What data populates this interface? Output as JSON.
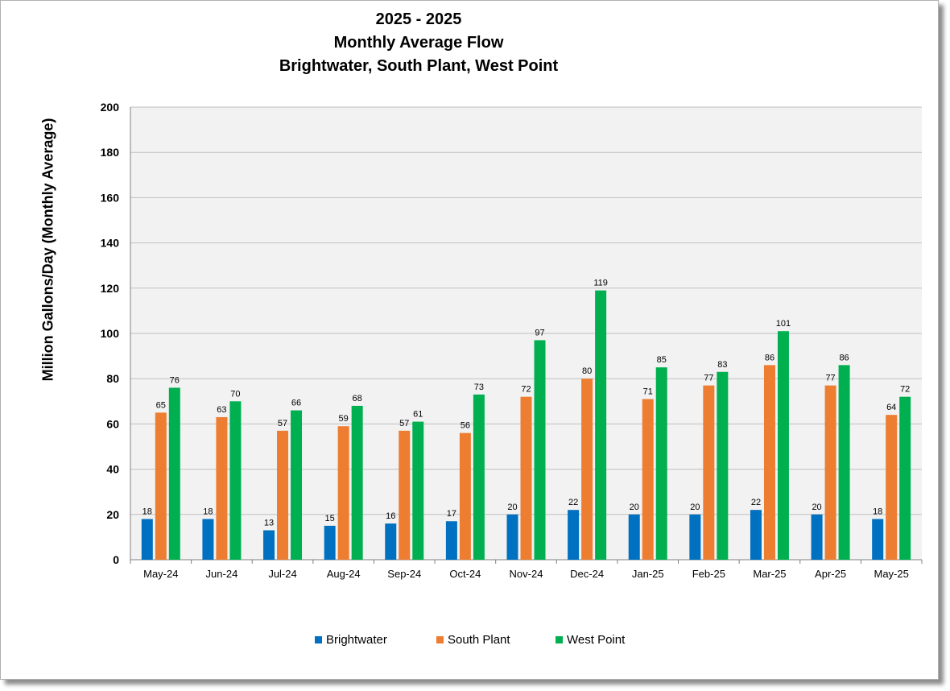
{
  "chart_data": {
    "type": "bar",
    "title_lines": [
      "2025 - 2025",
      "Monthly Average Flow",
      "Brightwater, South Plant, West Point"
    ],
    "ylabel": "Million Gallons/Day (Monthly Average)",
    "xlabel": "",
    "ylim": [
      0,
      200
    ],
    "yticks": [
      "0",
      "20",
      "40",
      "60",
      "80",
      "100",
      "120",
      "140",
      "160",
      "180",
      "200"
    ],
    "grid": true,
    "legend_position": "bottom",
    "categories": [
      "May-24",
      "Jun-24",
      "Jul-24",
      "Aug-24",
      "Sep-24",
      "Oct-24",
      "Nov-24",
      "Dec-24",
      "Jan-25",
      "Feb-25",
      "Mar-25",
      "Apr-25",
      "May-25"
    ],
    "series": [
      {
        "name": "Brightwater",
        "color": "#0070c0",
        "values": [
          18,
          18,
          13,
          15,
          16,
          17,
          20,
          22,
          20,
          20,
          22,
          20,
          18
        ]
      },
      {
        "name": "South Plant",
        "color": "#ed7d31",
        "values": [
          65,
          63,
          57,
          59,
          57,
          56,
          72,
          80,
          71,
          77,
          86,
          77,
          64
        ]
      },
      {
        "name": "West Point",
        "color": "#00b050",
        "values": [
          76,
          70,
          66,
          68,
          61,
          73,
          97,
          119,
          85,
          83,
          101,
          86,
          72
        ]
      }
    ],
    "plot_background": "#f2f2f2"
  }
}
